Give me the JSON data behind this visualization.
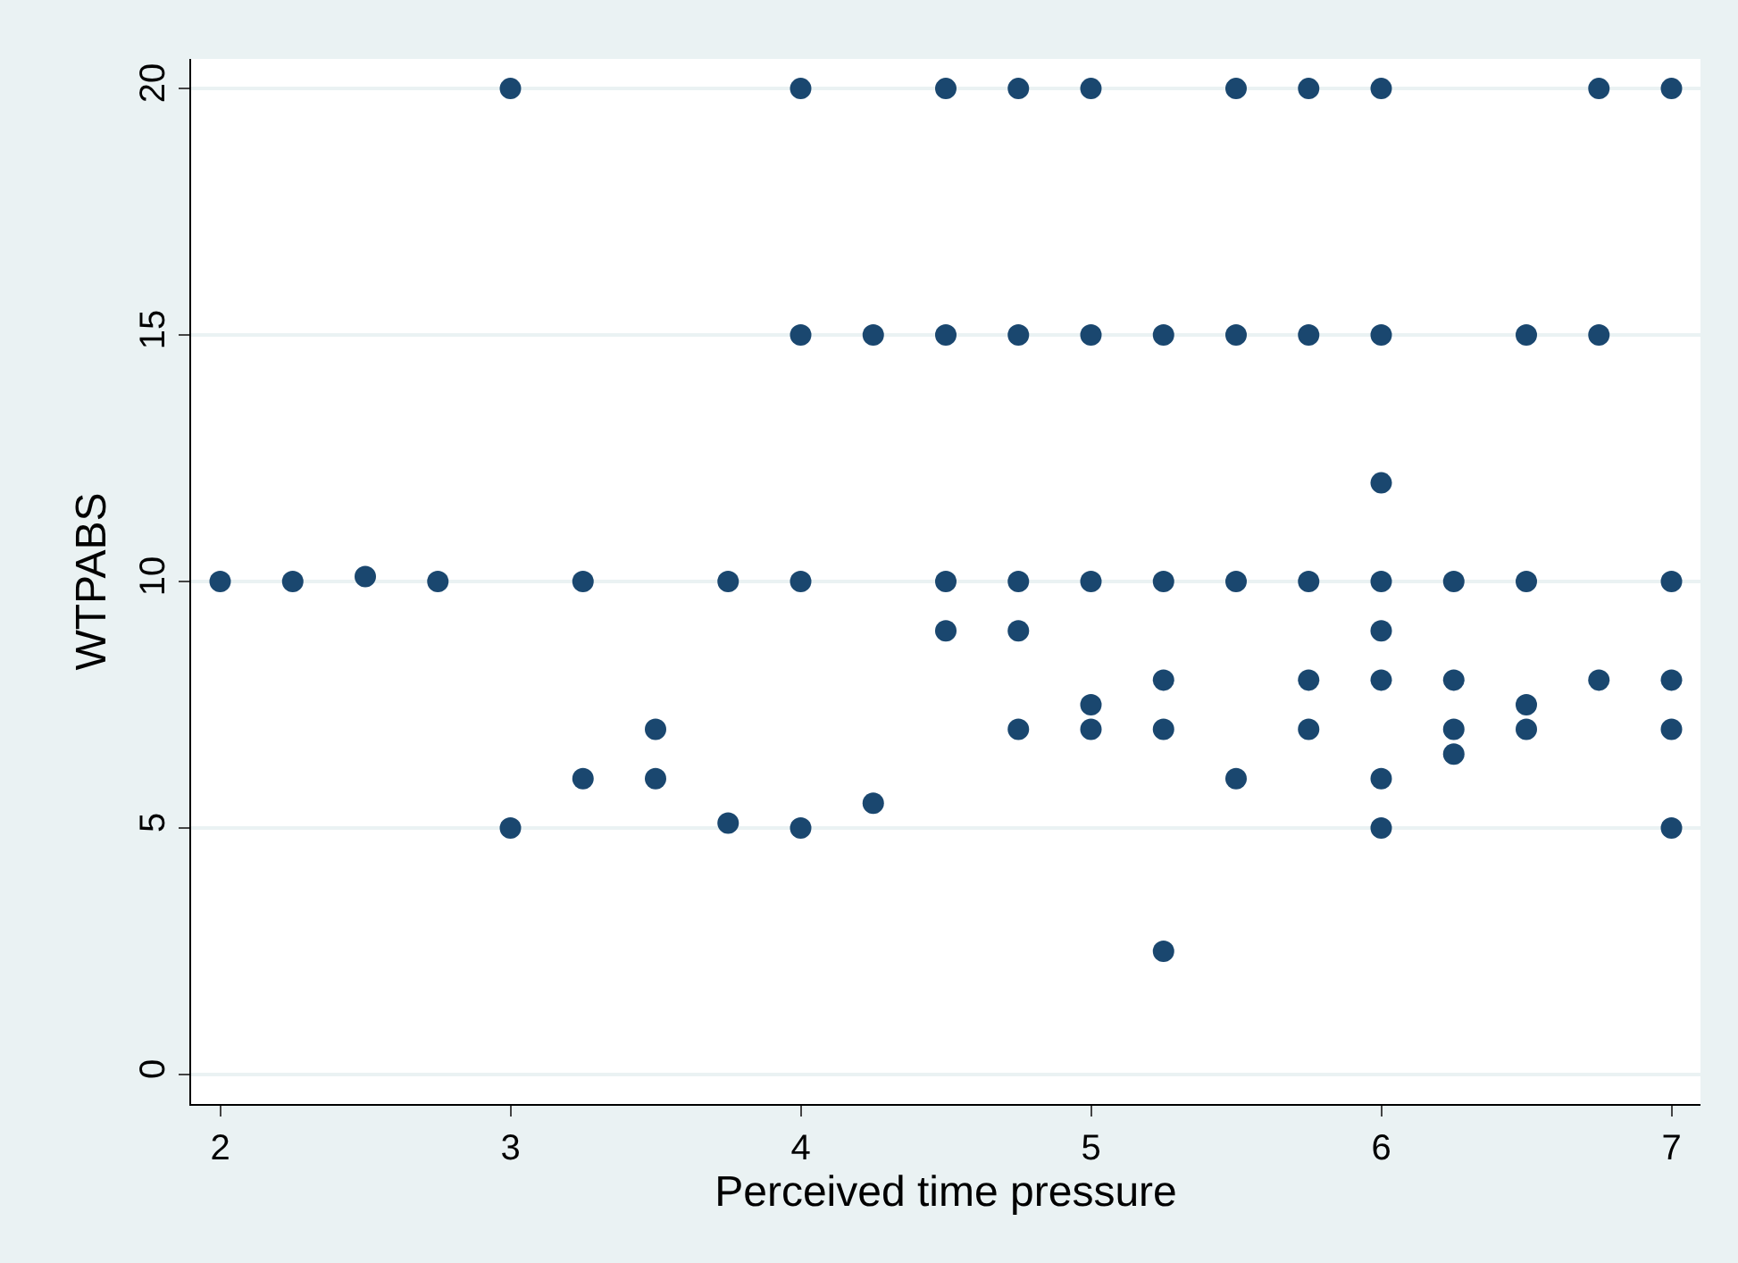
{
  "chart_data": {
    "type": "scatter",
    "xlabel": "Perceived time pressure",
    "ylabel": "WTPABS",
    "x": [
      3,
      4,
      4.5,
      4.75,
      5,
      5.5,
      5.75,
      6,
      6.75,
      7,
      4,
      4.25,
      4.5,
      4.75,
      5,
      5.25,
      5.5,
      5.75,
      6,
      6.5,
      6.75,
      6,
      2,
      2.25,
      2.5,
      2.75,
      3.25,
      3.75,
      4,
      4.5,
      4.75,
      5,
      5.25,
      5.5,
      5.75,
      6,
      6.25,
      6.5,
      7,
      4.5,
      4.75,
      6,
      5.25,
      5.75,
      6,
      6.25,
      6.75,
      7,
      5,
      6.5,
      3.5,
      4.75,
      5,
      5.25,
      5.75,
      6.25,
      6.5,
      7,
      6.25,
      3.25,
      3.5,
      5.5,
      6,
      4.25,
      3.75,
      3,
      4,
      6,
      7,
      5.25
    ],
    "series": [
      {
        "color": "#1a476f",
        "values": [
          20,
          20,
          20,
          20,
          20,
          20,
          20,
          20,
          20,
          20,
          15,
          15,
          15,
          15,
          15,
          15,
          15,
          15,
          15,
          15,
          15,
          12,
          10,
          10,
          10.1,
          10,
          10,
          10,
          10,
          10,
          10,
          10,
          10,
          10,
          10,
          10,
          10,
          10,
          10,
          9,
          9,
          9,
          8,
          8,
          8,
          8,
          8,
          8,
          7.5,
          7.5,
          7,
          7,
          7,
          7,
          7,
          7,
          7,
          7,
          6.5,
          6,
          6,
          6,
          6,
          5.5,
          5.1,
          5,
          5,
          5,
          5,
          2.5
        ]
      }
    ],
    "xlim": [
      1.9,
      7.1
    ],
    "ylim": [
      -0.6,
      20.6
    ],
    "xticks": [
      2,
      3,
      4,
      5,
      6,
      7
    ],
    "yticks": [
      0,
      5,
      10,
      15,
      20
    ],
    "grid": "y",
    "marker": "circle"
  }
}
